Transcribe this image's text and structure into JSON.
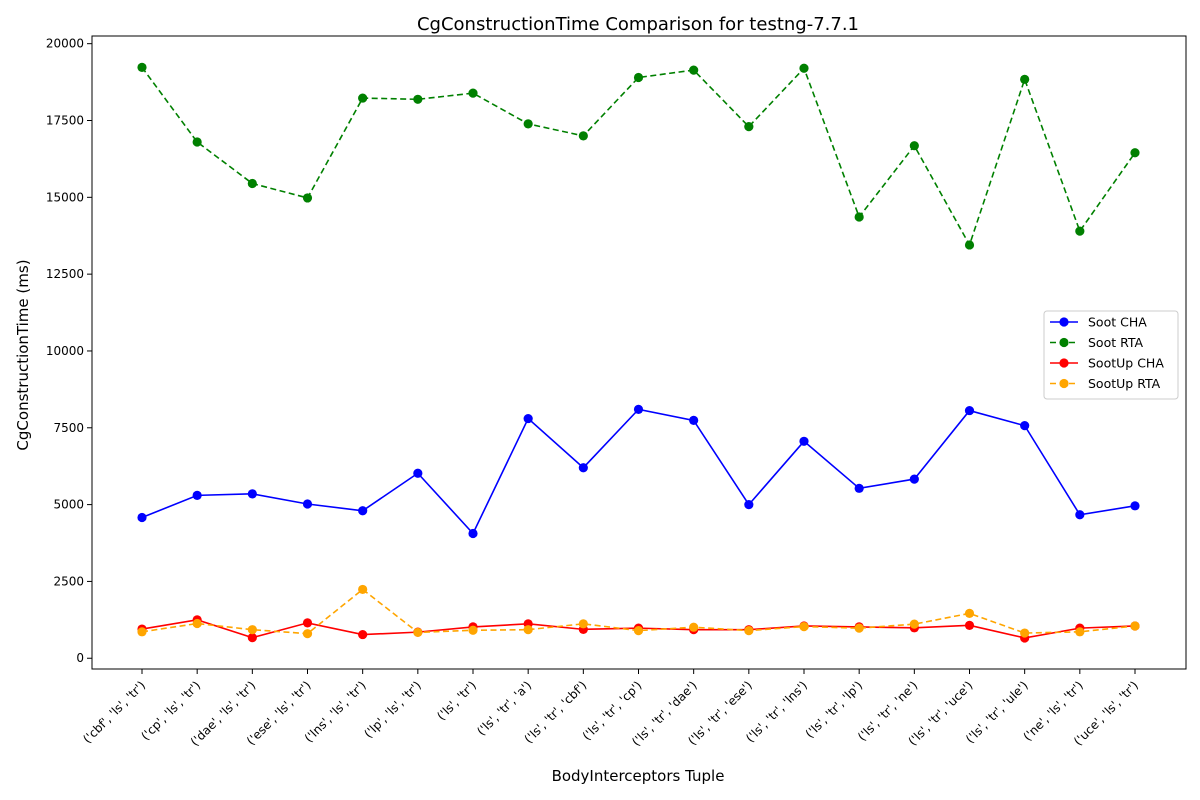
{
  "chart_data": {
    "type": "line",
    "title": "CgConstructionTime Comparison for testng-7.7.1",
    "xlabel": "BodyInterceptors Tuple",
    "ylabel": "CgConstructionTime (ms)",
    "ylim": [
      -350,
      20250
    ],
    "yticks": [
      0,
      2500,
      5000,
      7500,
      10000,
      12500,
      15000,
      17500,
      20000
    ],
    "grid": false,
    "legend_position": "center-right",
    "categories": [
      "('cbf', 'ls', 'tr')",
      "('cp', 'ls', 'tr')",
      "('dae', 'ls', 'tr')",
      "('ese', 'ls', 'tr')",
      "('lns', 'ls', 'tr')",
      "('lp', 'ls', 'tr')",
      "('ls', 'tr')",
      "('ls', 'tr', 'a')",
      "('ls', 'tr', 'cbf')",
      "('ls', 'tr', 'cp')",
      "('ls', 'tr', 'dae')",
      "('ls', 'tr', 'ese')",
      "('ls', 'tr', 'lns')",
      "('ls', 'tr', 'lp')",
      "('ls', 'tr', 'ne')",
      "('ls', 'tr', 'uce')",
      "('ls', 'tr', 'ule')",
      "('ne', 'ls', 'tr')",
      "('uce', 'ls', 'tr')"
    ],
    "series": [
      {
        "name": "Soot CHA",
        "color": "#0000ff",
        "dashed": false,
        "values": [
          4580,
          5300,
          5350,
          5020,
          4800,
          6020,
          4060,
          7800,
          6200,
          8100,
          7740,
          5000,
          7060,
          5530,
          5830,
          8060,
          7570,
          4670,
          4960
        ]
      },
      {
        "name": "Soot RTA",
        "color": "#008000",
        "dashed": true,
        "values": [
          19230,
          16800,
          15450,
          14980,
          18230,
          18190,
          18390,
          17390,
          17000,
          18900,
          19140,
          17300,
          19200,
          14360,
          16680,
          13450,
          18840,
          13900,
          16450
        ]
      },
      {
        "name": "SootUp CHA",
        "color": "#ff0000",
        "dashed": false,
        "values": [
          950,
          1250,
          670,
          1150,
          770,
          850,
          1020,
          1120,
          940,
          980,
          930,
          930,
          1050,
          1020,
          990,
          1070,
          660,
          980,
          1050
        ]
      },
      {
        "name": "SootUp RTA",
        "color": "#ffa500",
        "dashed": true,
        "values": [
          860,
          1130,
          930,
          800,
          2240,
          840,
          910,
          930,
          1120,
          900,
          1010,
          900,
          1030,
          980,
          1110,
          1460,
          820,
          860,
          1050
        ]
      }
    ]
  }
}
